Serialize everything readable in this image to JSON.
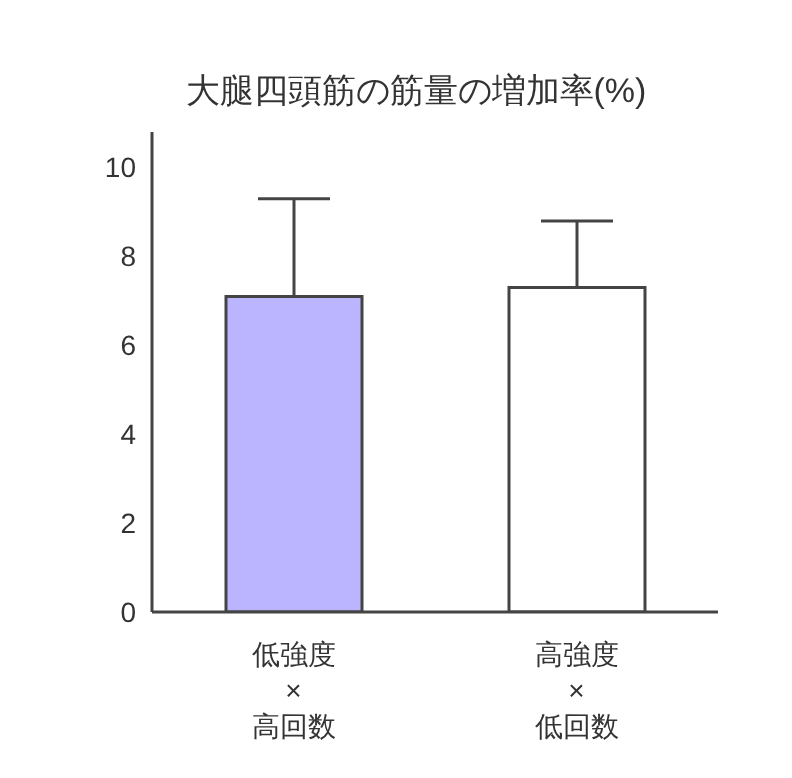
{
  "chart_data": {
    "type": "bar",
    "title": "大腿四頭筋の筋量の増加率(%)",
    "categories": [
      "低強度\n×\n高回数",
      "高強度\n×\n低回数"
    ],
    "values": [
      7.1,
      7.3
    ],
    "colors": [
      "#bbb5ff",
      "#ffffff"
    ],
    "errors": [
      [
        7.1,
        9.3
      ],
      [
        7.3,
        8.8
      ]
    ],
    "ylim": [
      0,
      10.8
    ],
    "yticks": [
      0,
      2,
      4,
      6,
      8,
      10
    ],
    "grid": false,
    "legend": false
  }
}
